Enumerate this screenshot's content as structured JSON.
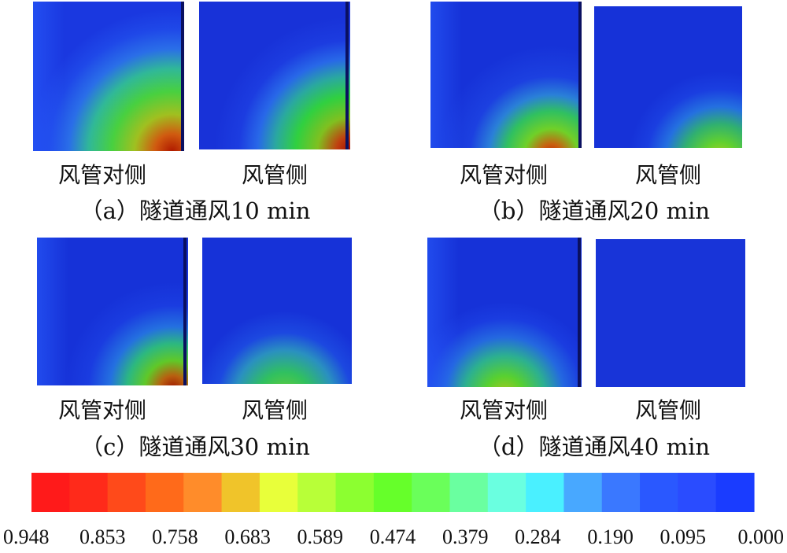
{
  "panels": [
    {
      "caption": "（a）隧道通风10 min",
      "left_label": "风管对侧",
      "right_label": "风管侧"
    },
    {
      "caption": "（b）隧道通风20 min",
      "left_label": "风管对侧",
      "right_label": "风管侧"
    },
    {
      "caption": "（c）隧道通风30 min",
      "left_label": "风管对侧",
      "right_label": "风管侧"
    },
    {
      "caption": "（d）隧道通风40 min",
      "left_label": "风管对侧",
      "right_label": "风管侧"
    }
  ],
  "colorbar": {
    "ticks": [
      "0.948",
      "0.853",
      "0.758",
      "0.683",
      "0.589",
      "0.474",
      "0.379",
      "0.284",
      "0.190",
      "0.095",
      "0.000"
    ],
    "colors": [
      "#ff1a1a",
      "#ff2a1a",
      "#ff4a1a",
      "#ff6a1a",
      "#ff8c2a",
      "#f0c42a",
      "#e8ff3a",
      "#b8ff38",
      "#8cff30",
      "#66ff2a",
      "#6aff5a",
      "#6affa0",
      "#6affe0",
      "#4af0ff",
      "#48a8ff",
      "#3a78ff",
      "#2a58ff",
      "#2a4cff",
      "#1a3cff"
    ]
  }
}
